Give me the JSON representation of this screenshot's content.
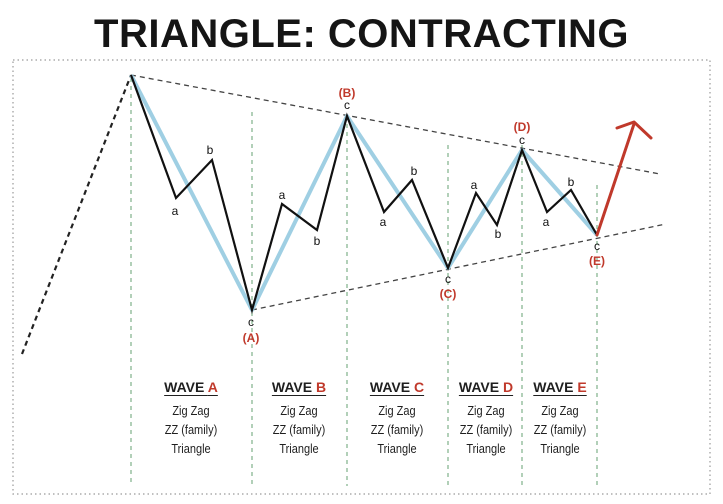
{
  "title": "TRIANGLE: CONTRACTING",
  "colors": {
    "main_wave": "#9fcfe3",
    "sub_wave": "#111111",
    "label_red": "#c0392b",
    "arrow_red": "#c0392b",
    "divider_green": "#7fb08a",
    "border_gray": "#9a9a9a"
  },
  "wave_labels": {
    "A": "(A)",
    "B": "(B)",
    "C": "(C)",
    "D": "(D)",
    "E": "(E)"
  },
  "sub_labels": {
    "a": "a",
    "b": "b",
    "c": "c"
  },
  "waves": [
    {
      "prefix": "WAVE ",
      "letter": "A",
      "lines": [
        "Zig Zag",
        "ZZ (family)",
        "Triangle"
      ]
    },
    {
      "prefix": "WAVE ",
      "letter": "B",
      "lines": [
        "Zig Zag",
        "ZZ (family)",
        "Triangle"
      ]
    },
    {
      "prefix": "WAVE ",
      "letter": "C",
      "lines": [
        "Zig Zag",
        "ZZ (family)",
        "Triangle"
      ]
    },
    {
      "prefix": "WAVE ",
      "letter": "D",
      "lines": [
        "Zig Zag",
        "ZZ (family)",
        "Triangle"
      ]
    },
    {
      "prefix": "WAVE ",
      "letter": "E",
      "lines": [
        "Zig Zag",
        "ZZ (family)",
        "Triangle"
      ]
    }
  ]
}
